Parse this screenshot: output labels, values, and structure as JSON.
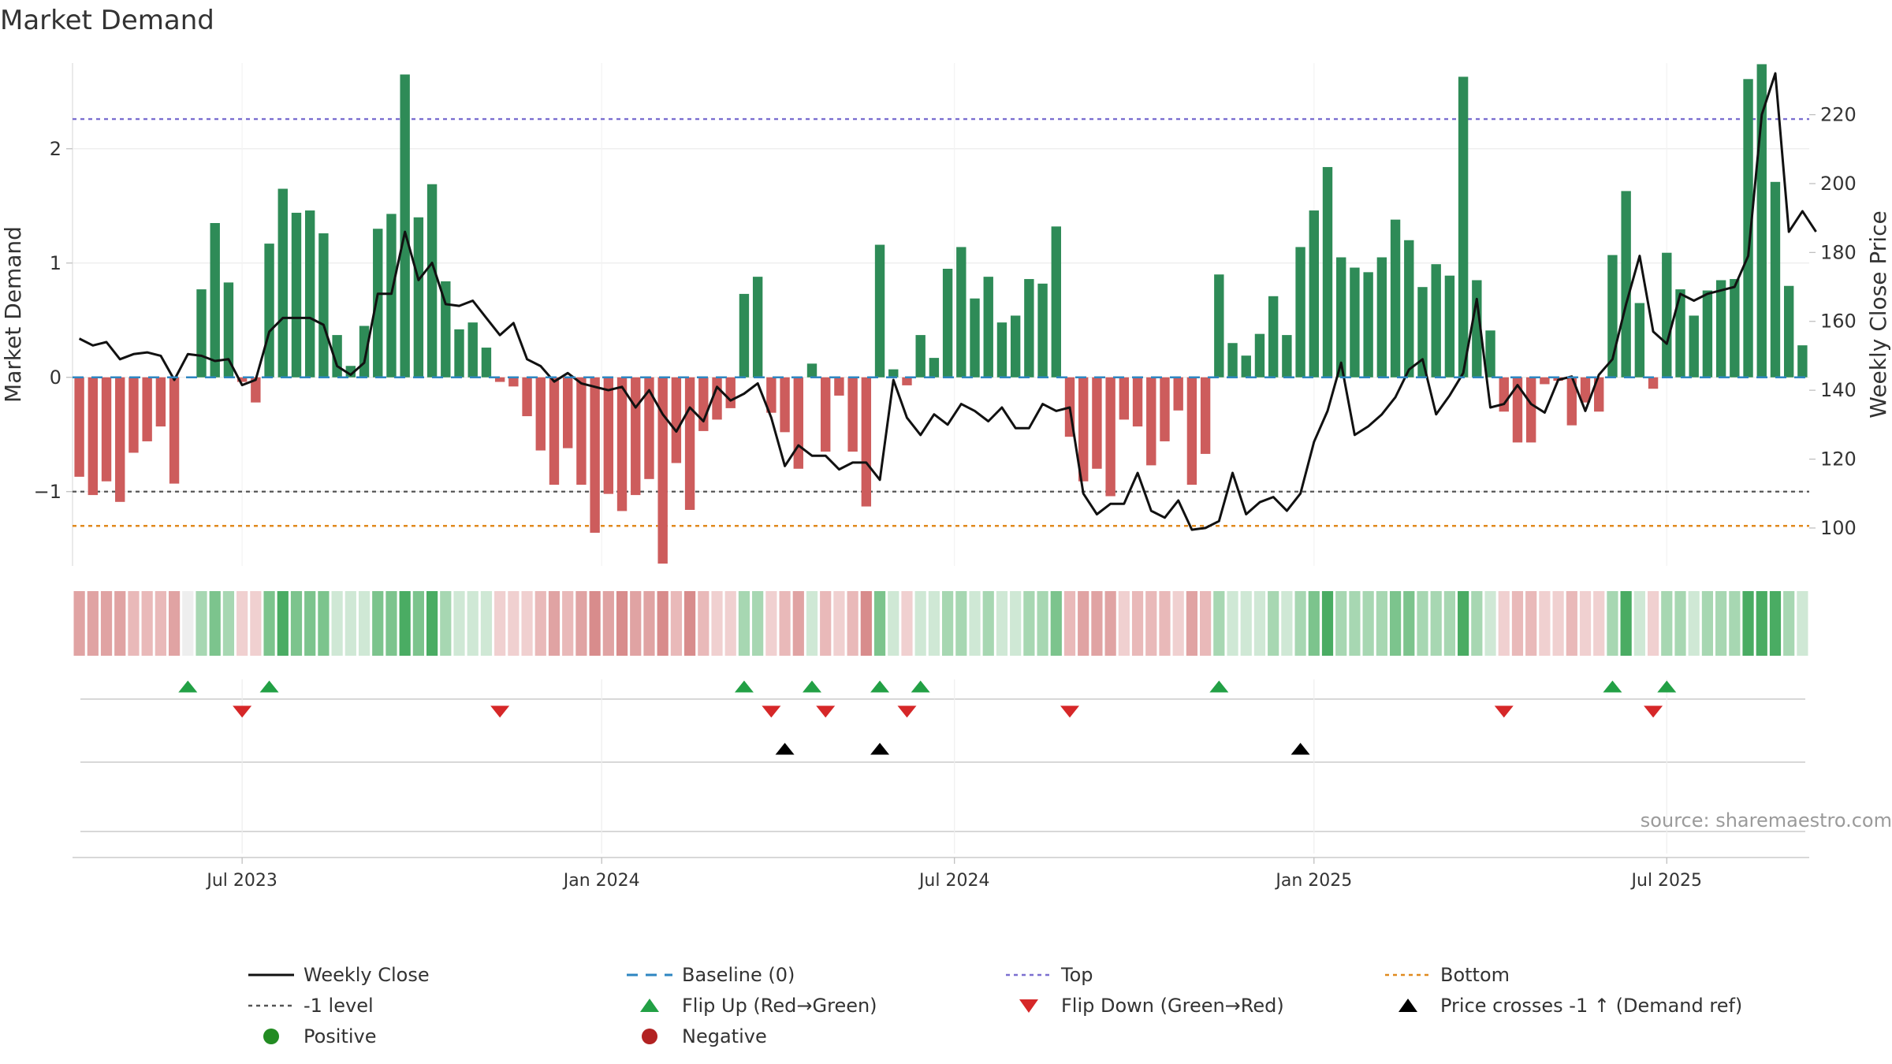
{
  "chart_data": {
    "type": "bar",
    "title": "Market Demand",
    "ylabel": "Market Demand",
    "y2label": "Weekly Close Price",
    "source": "source: sharemaestro.com",
    "ylim": [
      -1.65,
      2.75
    ],
    "y2lim": [
      89,
      235
    ],
    "yticks": [
      -1,
      0,
      1,
      2
    ],
    "y2ticks": [
      100,
      120,
      140,
      160,
      180,
      200,
      220
    ],
    "xticks": [
      "Jul 2023",
      "Jan 2024",
      "Jul 2024",
      "Jan 2025",
      "Jul 2025"
    ],
    "xtick_index": [
      12,
      38.5,
      64.5,
      91,
      117
    ],
    "levels": {
      "top": 2.26,
      "bottom": -1.3,
      "minus_one": -1.0,
      "baseline": 0
    },
    "demand": [
      -0.87,
      -1.03,
      -0.91,
      -1.09,
      -0.66,
      -0.56,
      -0.43,
      -0.93,
      0.0,
      0.77,
      1.35,
      0.83,
      -0.04,
      -0.22,
      1.17,
      1.65,
      1.44,
      1.46,
      1.26,
      0.37,
      0.1,
      0.45,
      1.3,
      1.43,
      2.65,
      1.4,
      1.69,
      0.84,
      0.42,
      0.48,
      0.26,
      -0.04,
      -0.08,
      -0.34,
      -0.64,
      -0.94,
      -0.62,
      -0.94,
      -1.36,
      -1.02,
      -1.17,
      -1.03,
      -0.89,
      -1.63,
      -0.75,
      -1.16,
      -0.47,
      -0.37,
      -0.27,
      0.73,
      0.88,
      -0.31,
      -0.48,
      -0.8,
      0.12,
      -0.65,
      -0.16,
      -0.65,
      -1.13,
      1.16,
      0.07,
      -0.07,
      0.37,
      0.17,
      0.95,
      1.14,
      0.69,
      0.88,
      0.48,
      0.54,
      0.86,
      0.82,
      1.32,
      -0.52,
      -0.91,
      -0.8,
      -1.04,
      -0.37,
      -0.43,
      -0.77,
      -0.56,
      -0.29,
      -0.94,
      -0.67,
      0.9,
      0.3,
      0.19,
      0.38,
      0.71,
      0.37,
      1.14,
      1.46,
      1.84,
      1.05,
      0.96,
      0.92,
      1.05,
      1.38,
      1.2,
      0.79,
      0.99,
      0.89,
      2.63,
      0.85,
      0.41,
      -0.3,
      -0.57,
      -0.57,
      -0.06,
      -0.03,
      -0.42,
      -0.22,
      -0.3,
      1.07,
      1.63,
      0.65,
      -0.1,
      1.09,
      0.77,
      0.54,
      0.76,
      0.85,
      0.86,
      2.61,
      2.74,
      1.71,
      0.8,
      0.28
    ],
    "price": [
      155,
      153,
      154,
      149,
      150.5,
      151,
      150,
      143,
      150.5,
      150,
      148.5,
      149,
      141.5,
      143,
      157,
      161,
      161,
      161,
      159,
      147,
      144.5,
      148,
      168,
      168,
      186,
      172,
      177,
      165,
      164.5,
      166,
      161,
      156,
      159.5,
      149,
      147,
      142.5,
      145,
      142,
      141,
      140,
      141,
      135,
      140,
      133,
      128,
      135,
      131,
      141,
      137,
      139,
      142,
      132,
      118,
      124,
      121,
      121,
      117,
      119,
      119,
      114,
      143,
      132,
      127,
      133,
      130,
      136,
      134,
      131,
      135,
      129,
      129,
      136,
      134,
      135,
      110,
      104,
      107,
      107,
      116,
      105,
      103,
      108,
      99.5,
      100,
      102,
      116,
      104,
      107.5,
      109,
      105,
      110,
      125,
      134,
      148,
      127,
      129.5,
      133,
      138,
      146,
      149,
      133,
      138.5,
      145,
      166.5,
      135,
      136,
      141.5,
      136,
      133.5,
      143,
      144,
      134,
      144.5,
      149,
      165,
      179,
      157,
      153.5,
      168,
      166,
      168,
      169,
      170,
      179,
      220,
      232,
      186,
      192,
      186
    ],
    "flip_up": [
      8,
      14,
      49,
      54,
      59,
      62,
      84,
      113,
      117
    ],
    "flip_down": [
      12,
      31,
      51,
      55,
      61,
      73,
      105,
      116
    ],
    "price_cross": [
      52,
      59,
      90
    ],
    "legend": [
      {
        "label": "Weekly Close",
        "kind": "line",
        "color": "#111111"
      },
      {
        "label": "Baseline (0)",
        "kind": "dash",
        "color": "#2e86c1"
      },
      {
        "label": "Top",
        "kind": "dot",
        "color": "#7b6fd0"
      },
      {
        "label": "Bottom",
        "kind": "dot",
        "color": "#e08a1e"
      },
      {
        "label": "-1 level",
        "kind": "dot",
        "color": "#555555"
      },
      {
        "label": "Flip Up (Red→Green)",
        "kind": "tri-up",
        "color": "#22a045"
      },
      {
        "label": "Flip Down (Green→Red)",
        "kind": "tri-down",
        "color": "#d62728"
      },
      {
        "label": "Price crosses -1 ↑ (Demand ref)",
        "kind": "tri-up",
        "color": "#000000"
      },
      {
        "label": "Positive",
        "kind": "circle",
        "color": "#228b22"
      },
      {
        "label": "Negative",
        "kind": "circle",
        "color": "#b22222"
      }
    ],
    "colors": {
      "positive": "#2e8b57",
      "negative": "#cd5c5c",
      "price": "#111111",
      "baseline": "#2e86c1"
    }
  }
}
